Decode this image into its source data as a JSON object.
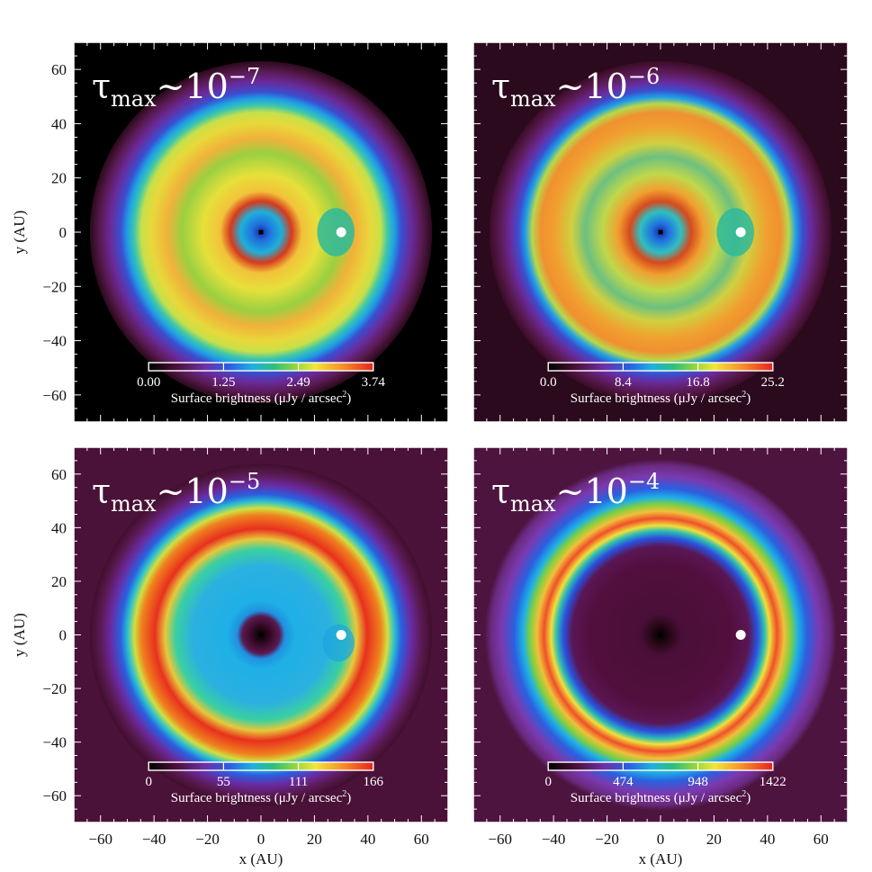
{
  "chart_data": [
    {
      "type": "heatmap",
      "panel": "top-left",
      "tau_label": {
        "tau": "τ",
        "sub": "max",
        "tilde": "~10",
        "exp": "−7"
      },
      "colorbar": {
        "ticks": [
          "0.00",
          "1.25",
          "2.49",
          "3.74"
        ],
        "label": "Surface brightness (μJy / arcsec",
        "label_sup": "2",
        "label_close": ")",
        "max": 3.74
      },
      "disk": {
        "inner_hole_radius_au": 10,
        "ring_radius_au": 37,
        "outer_edge_au": 50,
        "planet": {
          "x": 30,
          "y": 0
        }
      },
      "show_ylabel": true,
      "show_xlabel": false
    },
    {
      "type": "heatmap",
      "panel": "top-right",
      "tau_label": {
        "tau": "τ",
        "sub": "max",
        "tilde": "~10",
        "exp": "−6"
      },
      "colorbar": {
        "ticks": [
          "0.0",
          "8.4",
          "16.8",
          "25.2"
        ],
        "label": "Surface brightness (μJy / arcsec",
        "label_sup": "2",
        "label_close": ")",
        "max": 25.2
      },
      "disk": {
        "inner_hole_radius_au": 10,
        "ring_radius_au": 37,
        "outer_edge_au": 50,
        "planet": {
          "x": 30,
          "y": 0
        }
      },
      "show_ylabel": false,
      "show_xlabel": false
    },
    {
      "type": "heatmap",
      "panel": "bottom-left",
      "tau_label": {
        "tau": "τ",
        "sub": "max",
        "tilde": "~10",
        "exp": "−5"
      },
      "colorbar": {
        "ticks": [
          "0",
          "55",
          "111",
          "166"
        ],
        "label": "Surface brightness (μJy / arcsec",
        "label_sup": "2",
        "label_close": ")",
        "max": 166
      },
      "disk": {
        "inner_hole_radius_au": 7,
        "ring_radius_au": 37,
        "outer_edge_au": 50,
        "planet": {
          "x": 30,
          "y": 0
        }
      },
      "show_ylabel": true,
      "show_xlabel": true
    },
    {
      "type": "heatmap",
      "panel": "bottom-right",
      "tau_label": {
        "tau": "τ",
        "sub": "max",
        "tilde": "~10",
        "exp": "−4"
      },
      "colorbar": {
        "ticks": [
          "0",
          "474",
          "948",
          "1422"
        ],
        "label": "Surface brightness (μJy / arcsec",
        "label_sup": "2",
        "label_close": ")",
        "max": 1422
      },
      "disk": {
        "inner_hole_radius_au": 30,
        "ring_radius_au": 38,
        "outer_edge_au": 52,
        "planet": {
          "x": 30,
          "y": 0
        }
      },
      "show_ylabel": false,
      "show_xlabel": true
    }
  ],
  "axes": {
    "xlabel": "x (AU)",
    "ylabel": "y (AU)",
    "xlim": [
      -70,
      70
    ],
    "ylim": [
      -70,
      70
    ],
    "tick_values": [
      -60,
      -40,
      -20,
      0,
      20,
      40,
      60
    ],
    "tick_labels": [
      "−60",
      "−40",
      "−20",
      "0",
      "20",
      "40",
      "60"
    ]
  },
  "colors": {
    "colormap": [
      "#000000",
      "#3c0a22",
      "#7a1a5e",
      "#6d2a9c",
      "#2f4fd6",
      "#1fa2e6",
      "#2fc9c0",
      "#3ccb4a",
      "#c8e63a",
      "#f3e23a",
      "#f59a2a",
      "#e8281e"
    ],
    "frame": "#ffffff",
    "text_on_map": "#ffffff"
  }
}
